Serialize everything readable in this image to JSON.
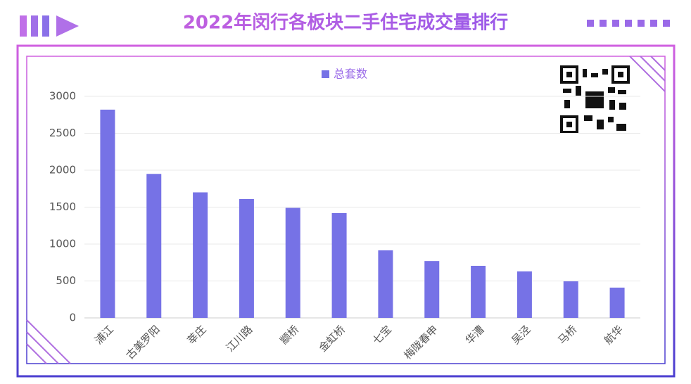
{
  "chart_data": {
    "type": "bar",
    "title": "2022年闵行各板块二手住宅成交量排行",
    "categories": [
      "浦江",
      "古美罗阳",
      "莘庄",
      "江川路",
      "颛桥",
      "金虹桥",
      "七宝",
      "梅陇春申",
      "华漕",
      "吴泾",
      "马桥",
      "航华"
    ],
    "series": [
      {
        "name": "总套数",
        "color": "#7672e6",
        "values": [
          2820,
          1950,
          1700,
          1610,
          1490,
          1420,
          915,
          770,
          705,
          630,
          495,
          410
        ]
      }
    ],
    "ylim": [
      0,
      3000
    ],
    "yticks": [
      0,
      500,
      1000,
      1500,
      2000,
      2500,
      3000
    ],
    "grid": true,
    "legend": "top"
  }
}
